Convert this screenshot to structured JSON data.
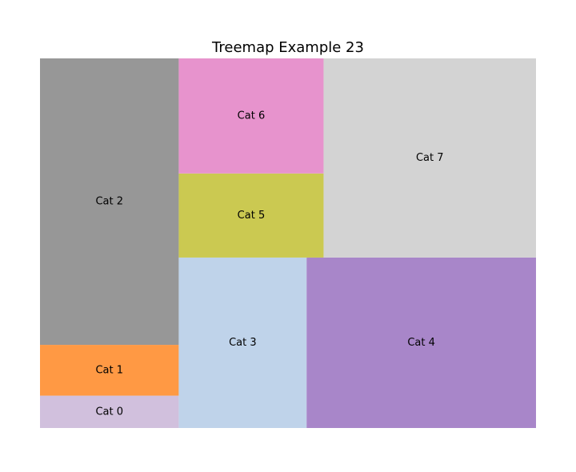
{
  "chart_data": {
    "type": "treemap",
    "title": "Treemap Example 23",
    "items": [
      {
        "label": "Cat 0",
        "value": 7,
        "color": "#d1c0dd"
      },
      {
        "label": "Cat 1",
        "value": 11,
        "color": "#ff9944"
      },
      {
        "label": "Cat 2",
        "value": 62,
        "color": "#979797"
      },
      {
        "label": "Cat 3",
        "value": 34,
        "color": "#bfd3ea"
      },
      {
        "label": "Cat 4",
        "value": 61,
        "color": "#a886c9"
      },
      {
        "label": "Cat 5",
        "value": 19,
        "color": "#cbc951"
      },
      {
        "label": "Cat 6",
        "value": 26,
        "color": "#e793cd"
      },
      {
        "label": "Cat 7",
        "value": 66,
        "color": "#d3d3d3"
      }
    ],
    "axes_visible": false,
    "legend": "none"
  }
}
